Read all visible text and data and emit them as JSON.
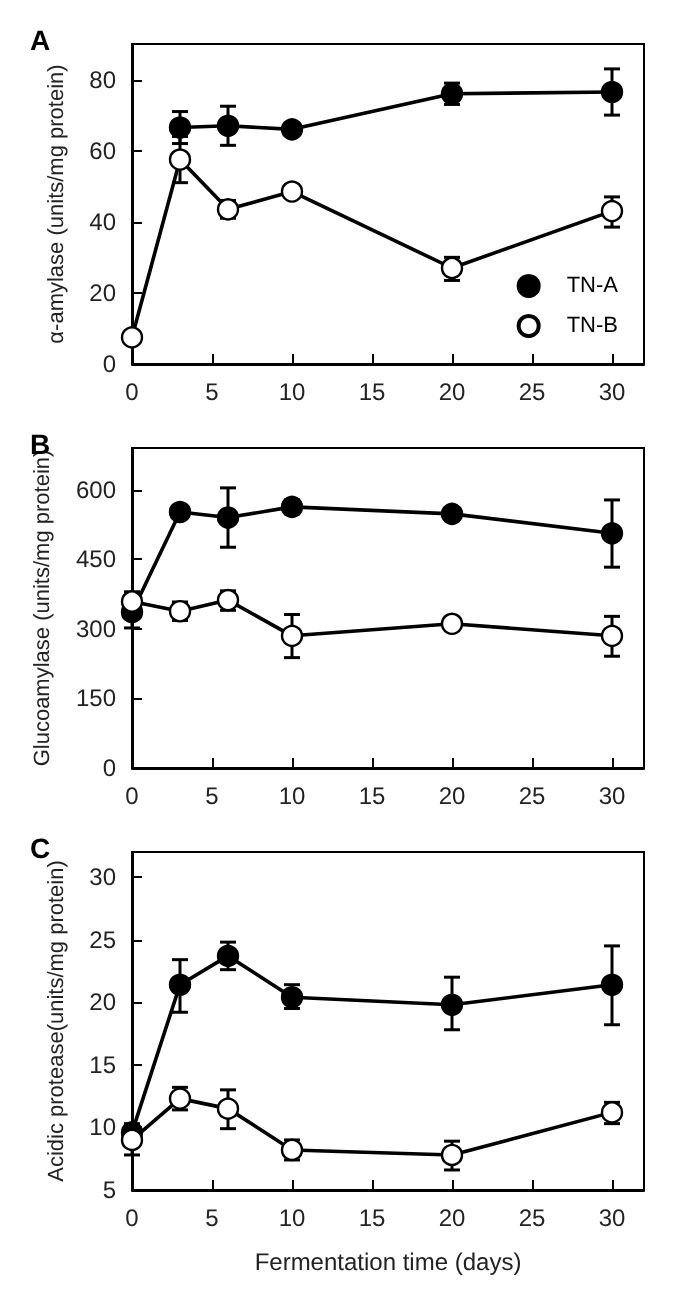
{
  "chart_data": [
    {
      "type": "line",
      "title": "A",
      "ylabel": "α-amylase (units/mg protein)",
      "x": [
        0,
        3,
        6,
        10,
        20,
        30
      ],
      "xlim": [
        0,
        32
      ],
      "xticks": [
        0,
        5,
        10,
        15,
        20,
        25,
        30
      ],
      "ylim": [
        0,
        90
      ],
      "yticks": [
        0,
        20,
        40,
        60,
        80
      ],
      "grid": false,
      "legend": "bottom right",
      "marker": "circle",
      "line_style": "solid",
      "series": [
        {
          "name": "TN-A",
          "color": "#000000",
          "values": [
            null,
            66.5,
            67,
            66,
            76,
            76.5
          ],
          "errors": [
            null,
            [
              62,
              71
            ],
            [
              61.5,
              72.5
            ],
            null,
            [
              73,
              79
            ],
            [
              70,
              83
            ]
          ]
        },
        {
          "name": "TN-B",
          "color": "#ffffff",
          "values": [
            7.5,
            57.5,
            43.5,
            48.5,
            27,
            43
          ],
          "errors": [
            null,
            [
              51,
              64
            ],
            [
              41,
              46
            ],
            null,
            [
              23.5,
              30
            ],
            [
              38.5,
              47
            ]
          ]
        }
      ]
    },
    {
      "type": "line",
      "title": "B",
      "ylabel": "Glucoamylase (units/mg protein)",
      "x": [
        0,
        3,
        6,
        10,
        20,
        30
      ],
      "xlim": [
        0,
        32
      ],
      "xticks": [
        0,
        5,
        10,
        15,
        20,
        25,
        30
      ],
      "ylim": [
        0,
        690
      ],
      "yticks": [
        0,
        150,
        300,
        450,
        600
      ],
      "grid": false,
      "legend": false,
      "marker": "circle",
      "line_style": "solid",
      "series": [
        {
          "color": "#000000",
          "values": [
            336,
            552,
            540,
            563,
            548,
            506
          ],
          "errors": [
            [
              302,
              380
            ],
            null,
            [
              476,
              604
            ],
            [
              548,
              578
            ],
            null,
            [
              433,
              578
            ]
          ]
        },
        {
          "color": "#ffffff",
          "values": [
            359,
            338,
            362,
            285,
            311,
            285
          ],
          "errors": [
            null,
            [
              318,
              358
            ],
            [
              340,
              382
            ],
            [
              238,
              331
            ],
            null,
            [
              241,
              327
            ]
          ]
        }
      ]
    },
    {
      "type": "line",
      "title": "C",
      "ylabel": "Acidic protease(units/mg protein)",
      "xlabel": "Fermentation time (days)",
      "x": [
        0,
        3,
        6,
        10,
        20,
        30
      ],
      "xlim": [
        0,
        32
      ],
      "xticks": [
        0,
        5,
        10,
        15,
        20,
        25,
        30
      ],
      "ylim": [
        5,
        32
      ],
      "yticks": [
        5,
        10,
        15,
        20,
        25,
        30
      ],
      "grid": false,
      "legend": false,
      "marker": "circle",
      "line_style": "solid",
      "series": [
        {
          "color": "#000000",
          "values": [
            9.6,
            21.4,
            23.7,
            20.4,
            19.8,
            21.4
          ],
          "errors": [
            [
              7.8,
              10.3
            ],
            [
              19.2,
              23.4
            ],
            [
              22.6,
              24.8
            ],
            [
              19.5,
              21.4
            ],
            [
              17.8,
              22
            ],
            [
              18.2,
              24.5
            ]
          ]
        },
        {
          "color": "#ffffff",
          "values": [
            9,
            12.3,
            11.5,
            8.2,
            7.8,
            11.2
          ],
          "errors": [
            null,
            [
              11.4,
              13.2
            ],
            [
              9.9,
              13
            ],
            [
              7.4,
              9
            ],
            [
              6.6,
              8.9
            ],
            [
              10.3,
              12
            ]
          ]
        }
      ]
    }
  ]
}
